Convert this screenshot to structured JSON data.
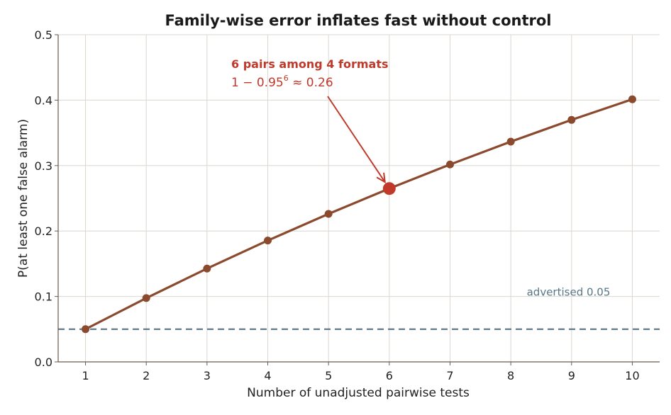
{
  "chart_data": {
    "type": "line",
    "title": "Family-wise error inflates fast without control",
    "xlabel": "Number of unadjusted pairwise tests",
    "ylabel": "P(at least one false alarm)",
    "xlim": [
      0.55,
      10.45
    ],
    "ylim": [
      0,
      0.5
    ],
    "x_ticks": [
      "1",
      "2",
      "3",
      "4",
      "5",
      "6",
      "7",
      "8",
      "9",
      "10"
    ],
    "y_ticks": [
      "0.0",
      "0.1",
      "0.2",
      "0.3",
      "0.4",
      "0.5"
    ],
    "grid": true,
    "series": [
      {
        "x": [
          1,
          2,
          3,
          4,
          5,
          6,
          7,
          8,
          9,
          10
        ],
        "y": [
          0.05,
          0.0975,
          0.1426,
          0.1855,
          0.2262,
          0.2649,
          0.3017,
          0.3366,
          0.3698,
          0.4013
        ],
        "color": "#8b4a2e"
      }
    ],
    "reference_line": {
      "y": 0.05,
      "label": "advertised 0.05",
      "color": "#577688",
      "style": "dashed"
    },
    "annotation": {
      "title": "6 pairs among 4 formats",
      "formula_left": "1 − 0.95",
      "formula_exp": "6",
      "formula_right": " ≈ 0.26",
      "x": 6,
      "y": 0.2649,
      "color": "#c0392b"
    }
  }
}
